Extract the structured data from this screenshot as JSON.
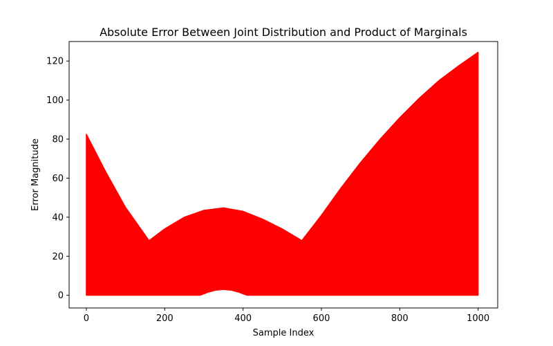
{
  "chart_data": {
    "type": "area",
    "title": "Absolute Error Between Joint Distribution and Product of Marginals",
    "xlabel": "Sample Index",
    "ylabel": "Error Magnitude",
    "xlim": [
      -44,
      1050
    ],
    "ylim": [
      -6.5,
      130
    ],
    "xticks": [
      0,
      200,
      400,
      600,
      800,
      1000
    ],
    "yticks": [
      0,
      20,
      40,
      60,
      80,
      100,
      120
    ],
    "grid": false,
    "legend": "none",
    "series": [
      {
        "color": "#ff0000",
        "upper_envelope": [
          [
            0,
            82.5
          ],
          [
            50,
            63
          ],
          [
            100,
            45
          ],
          [
            160,
            28
          ],
          [
            200,
            34
          ],
          [
            250,
            40
          ],
          [
            300,
            43.5
          ],
          [
            350,
            44.8
          ],
          [
            400,
            43
          ],
          [
            450,
            39
          ],
          [
            500,
            34
          ],
          [
            550,
            28
          ],
          [
            600,
            41
          ],
          [
            650,
            55
          ],
          [
            700,
            68
          ],
          [
            750,
            80
          ],
          [
            800,
            91
          ],
          [
            850,
            101
          ],
          [
            900,
            110
          ],
          [
            950,
            117.5
          ],
          [
            1000,
            124.5
          ]
        ],
        "lower_envelope": [
          [
            0,
            0
          ],
          [
            290,
            0
          ],
          [
            310,
            1.5
          ],
          [
            330,
            2.6
          ],
          [
            350,
            3.0
          ],
          [
            370,
            2.6
          ],
          [
            390,
            1.5
          ],
          [
            410,
            0
          ],
          [
            1000,
            0
          ]
        ]
      }
    ]
  }
}
